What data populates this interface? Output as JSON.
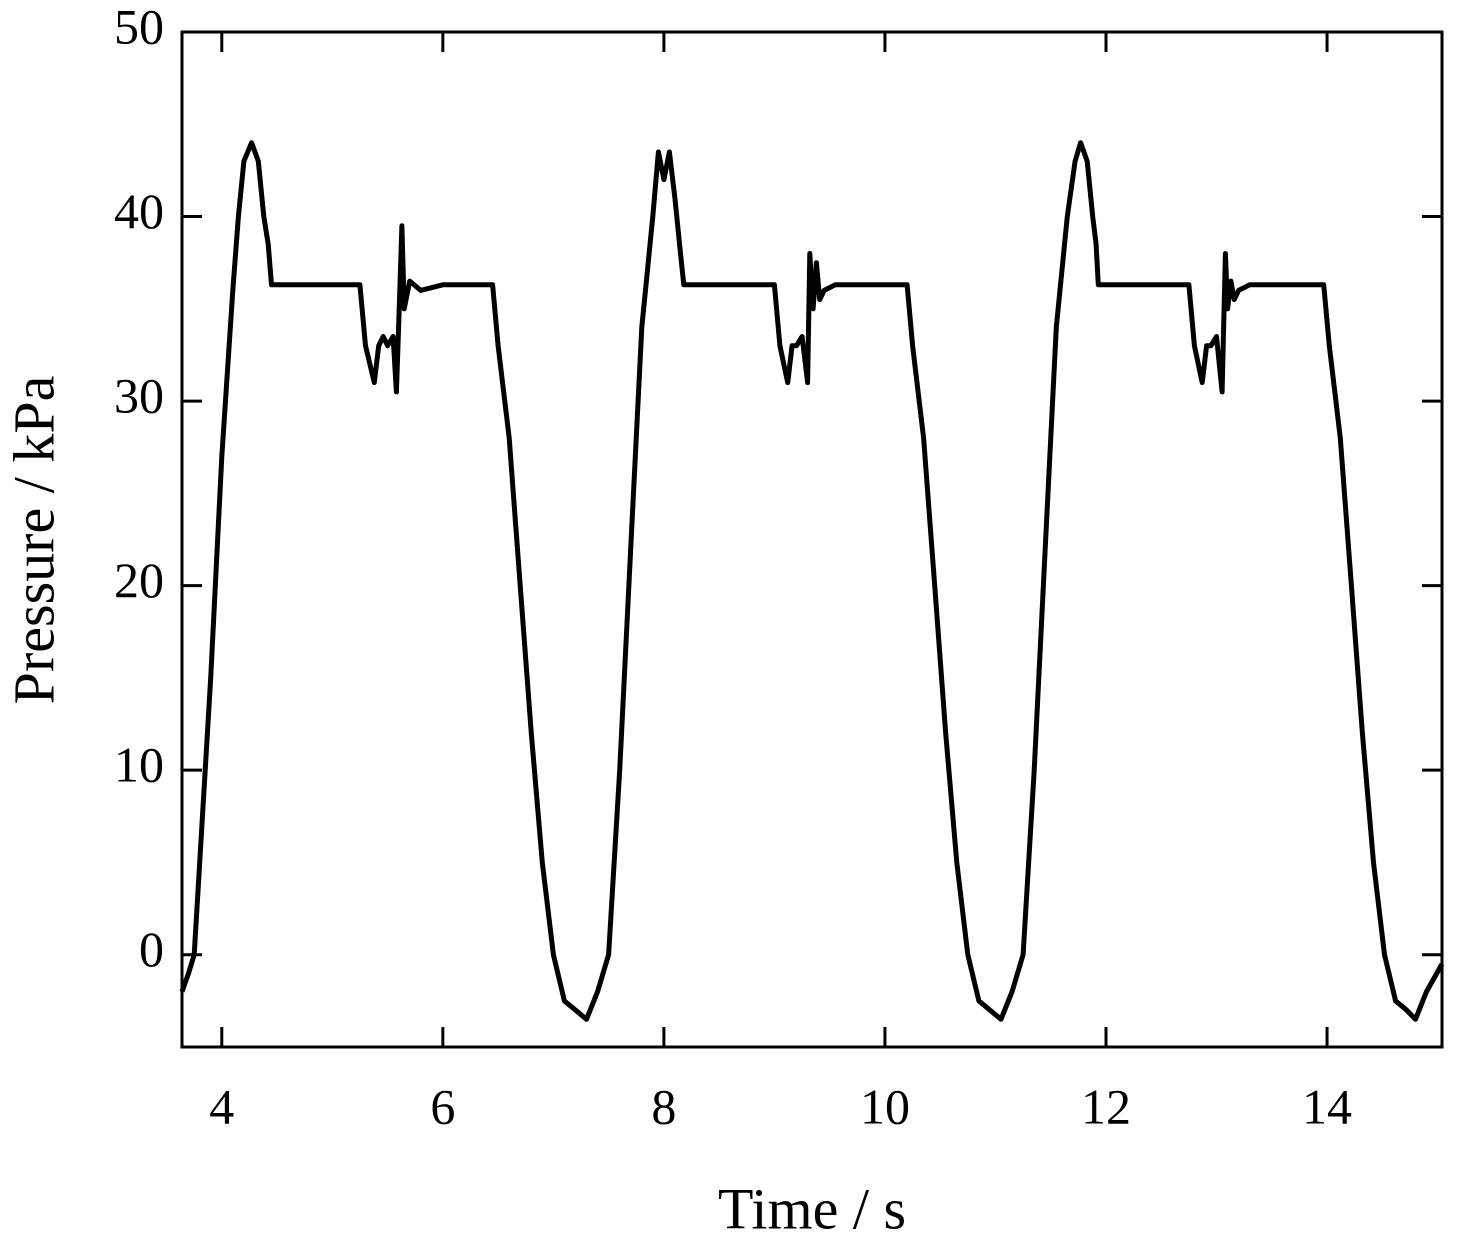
{
  "chart_data": {
    "type": "line",
    "x_label": "Time / s",
    "y_label": "Pressure / kPa",
    "xlim": [
      3.64,
      15.04
    ],
    "ylim": [
      -5,
      50
    ],
    "xticks": [
      4,
      6,
      8,
      10,
      12,
      14
    ],
    "yticks": [
      0,
      10,
      20,
      30,
      40,
      50
    ],
    "mirror_ticks": true,
    "series": [
      {
        "name": "Pressure",
        "color": "#000000",
        "x": [
          3.64,
          3.7,
          3.75,
          3.8,
          3.9,
          4.0,
          4.1,
          4.15,
          4.2,
          4.27,
          4.33,
          4.38,
          4.42,
          4.45,
          5.25,
          5.3,
          5.38,
          5.42,
          5.46,
          5.5,
          5.55,
          5.58,
          5.6,
          5.63,
          5.65,
          5.7,
          5.8,
          6.0,
          6.45,
          6.5,
          6.6,
          6.7,
          6.8,
          6.9,
          7.0,
          7.1,
          7.2,
          7.3,
          7.4,
          7.5,
          7.6,
          7.7,
          7.8,
          7.9,
          7.95,
          8.0,
          8.05,
          8.1,
          8.15,
          8.18,
          9.0,
          9.05,
          9.12,
          9.16,
          9.2,
          9.25,
          9.3,
          9.32,
          9.35,
          9.38,
          9.41,
          9.45,
          9.55,
          9.75,
          10.2,
          10.25,
          10.35,
          10.45,
          10.55,
          10.65,
          10.75,
          10.85,
          10.95,
          11.05,
          11.15,
          11.25,
          11.35,
          11.45,
          11.55,
          11.65,
          11.72,
          11.77,
          11.83,
          11.88,
          11.91,
          11.93,
          12.75,
          12.8,
          12.87,
          12.91,
          12.95,
          13.0,
          13.05,
          13.08,
          13.1,
          13.13,
          13.16,
          13.2,
          13.3,
          13.5,
          13.97,
          14.02,
          14.12,
          14.22,
          14.32,
          14.42,
          14.52,
          14.62,
          14.72,
          14.8,
          14.9,
          15.04
        ],
        "values": [
          -2,
          -1,
          0,
          5,
          15,
          27,
          36,
          40,
          43,
          44,
          43,
          40,
          38.5,
          36.3,
          36.3,
          33,
          31,
          33,
          33.5,
          33,
          33.5,
          30.5,
          34,
          39.5,
          35,
          36.5,
          36,
          36.3,
          36.3,
          33,
          28,
          20,
          12,
          5,
          0,
          -2.5,
          -3,
          -3.5,
          -2,
          0,
          10,
          22,
          34,
          40,
          43.5,
          42,
          43.5,
          41,
          38,
          36.3,
          36.3,
          33,
          31,
          33,
          33,
          33.5,
          31,
          38,
          35,
          37.5,
          35.5,
          36,
          36.3,
          36.3,
          36.3,
          33,
          28,
          20,
          12,
          5,
          0,
          -2.5,
          -3,
          -3.5,
          -2,
          0,
          10,
          22,
          34,
          40,
          43,
          44,
          43,
          40,
          38.5,
          36.3,
          36.3,
          33,
          31,
          33,
          33,
          33.5,
          30.5,
          38,
          35,
          36.5,
          35.5,
          36,
          36.3,
          36.3,
          36.3,
          33,
          28,
          20,
          12,
          5,
          0,
          -2.5,
          -3,
          -3.5,
          -2,
          -0.5
        ]
      }
    ]
  }
}
